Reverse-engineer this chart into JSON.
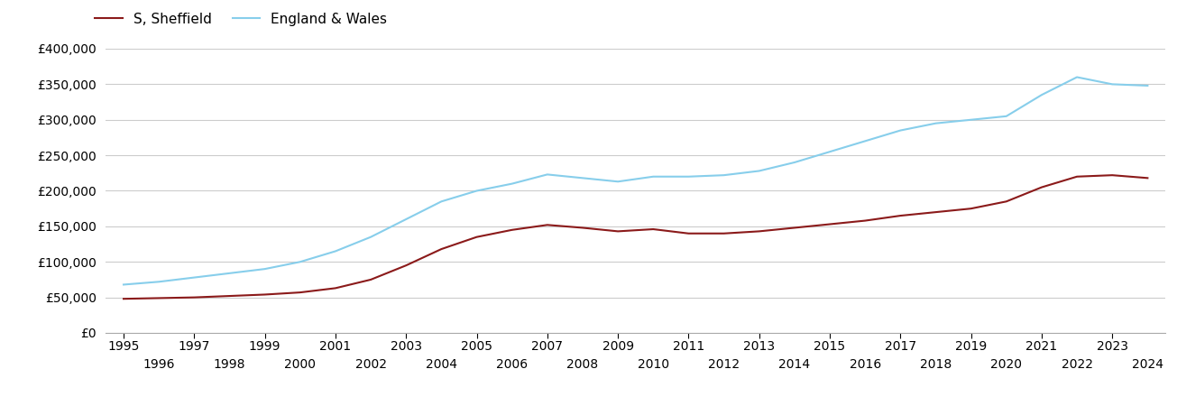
{
  "sheffield_years": [
    1995,
    1996,
    1997,
    1998,
    1999,
    2000,
    2001,
    2002,
    2003,
    2004,
    2005,
    2006,
    2007,
    2008,
    2009,
    2010,
    2011,
    2012,
    2013,
    2014,
    2015,
    2016,
    2017,
    2018,
    2019,
    2020,
    2021,
    2022,
    2023,
    2024
  ],
  "sheffield_values": [
    48000,
    49000,
    50000,
    52000,
    54000,
    57000,
    63000,
    75000,
    95000,
    118000,
    135000,
    145000,
    152000,
    148000,
    143000,
    146000,
    140000,
    140000,
    143000,
    148000,
    153000,
    158000,
    165000,
    170000,
    175000,
    185000,
    205000,
    220000,
    222000,
    218000
  ],
  "england_years": [
    1995,
    1996,
    1997,
    1998,
    1999,
    2000,
    2001,
    2002,
    2003,
    2004,
    2005,
    2006,
    2007,
    2008,
    2009,
    2010,
    2011,
    2012,
    2013,
    2014,
    2015,
    2016,
    2017,
    2018,
    2019,
    2020,
    2021,
    2022,
    2023,
    2024
  ],
  "england_values": [
    68000,
    72000,
    78000,
    84000,
    90000,
    100000,
    115000,
    135000,
    160000,
    185000,
    200000,
    210000,
    223000,
    218000,
    213000,
    220000,
    220000,
    222000,
    228000,
    240000,
    255000,
    270000,
    285000,
    295000,
    300000,
    305000,
    335000,
    360000,
    350000,
    348000
  ],
  "sheffield_color": "#8B1A1A",
  "england_color": "#87CEEB",
  "sheffield_label": "S, Sheffield",
  "england_label": "England & Wales",
  "ylim": [
    0,
    400000
  ],
  "yticks": [
    0,
    50000,
    100000,
    150000,
    200000,
    250000,
    300000,
    350000,
    400000
  ],
  "ytick_labels": [
    "£0",
    "£50,000",
    "£100,000",
    "£150,000",
    "£200,000",
    "£250,000",
    "£300,000",
    "£350,000",
    "£400,000"
  ],
  "xlim_start": 1994.5,
  "xlim_end": 2024.5,
  "odd_xticks": [
    1995,
    1997,
    1999,
    2001,
    2003,
    2005,
    2007,
    2009,
    2011,
    2013,
    2015,
    2017,
    2019,
    2021,
    2023
  ],
  "even_xticks": [
    1996,
    1998,
    2000,
    2002,
    2004,
    2006,
    2008,
    2010,
    2012,
    2014,
    2016,
    2018,
    2020,
    2022,
    2024
  ],
  "background_color": "#ffffff",
  "grid_color": "#cccccc",
  "line_width": 1.5,
  "legend_fontsize": 11,
  "tick_fontsize": 10
}
